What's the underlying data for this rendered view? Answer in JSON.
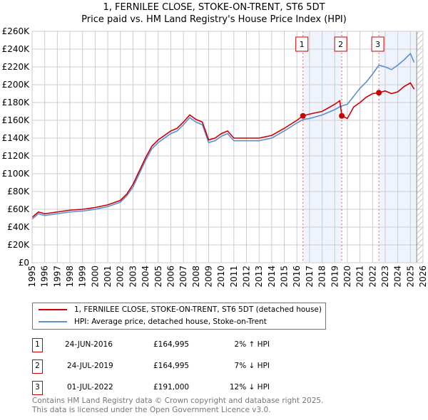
{
  "title": "1, FERNILEE CLOSE, STOKE-ON-TRENT, ST6 5DT",
  "subtitle": "Price paid vs. HM Land Registry's House Price Index (HPI)",
  "colors": {
    "property": "#cc0000",
    "hpi": "#5b8fd4",
    "shade": "#eef3fc"
  },
  "chart_data": {
    "type": "line",
    "xlim": [
      1995,
      2026
    ],
    "ylim": [
      0,
      260000
    ],
    "yticks": [
      0,
      20000,
      40000,
      60000,
      80000,
      100000,
      120000,
      140000,
      160000,
      180000,
      200000,
      220000,
      240000,
      260000
    ],
    "ytick_labels": [
      "£0",
      "£20K",
      "£40K",
      "£60K",
      "£80K",
      "£100K",
      "£120K",
      "£140K",
      "£160K",
      "£180K",
      "£200K",
      "£220K",
      "£240K",
      "£260K"
    ],
    "xticks": [
      "1995",
      "1996",
      "1997",
      "1998",
      "1999",
      "2000",
      "2001",
      "2002",
      "2003",
      "2004",
      "2005",
      "2006",
      "2007",
      "2008",
      "2009",
      "2010",
      "2011",
      "2012",
      "2013",
      "2014",
      "2015",
      "2016",
      "2017",
      "2018",
      "2019",
      "2020",
      "2021",
      "2022",
      "2023",
      "2024",
      "2025",
      "2026"
    ],
    "grid": true,
    "legend_placement": "below",
    "forecast_start": 2025.5,
    "series": [
      {
        "name": "1, FERNILEE CLOSE, STOKE-ON-TRENT, ST6 5DT (detached house)",
        "color": "#cc0000",
        "x": [
          1995,
          1995.5,
          1996,
          1997,
          1998,
          1999,
          2000,
          2001,
          2002,
          2002.5,
          2003,
          2003.5,
          2004,
          2004.5,
          2005,
          2006,
          2006.5,
          2007,
          2007.5,
          2008,
          2008.5,
          2009,
          2009.5,
          2010,
          2010.5,
          2011,
          2012,
          2013,
          2014,
          2015,
          2016,
          2016.48,
          2017,
          2018,
          2019,
          2019.4,
          2019.56,
          2020,
          2020.5,
          2021,
          2021.5,
          2022,
          2022.5,
          2023,
          2023.5,
          2024,
          2024.5,
          2025,
          2025.3
        ],
        "y": [
          51000,
          57000,
          55000,
          57000,
          59000,
          60000,
          62000,
          65000,
          70000,
          77000,
          88000,
          103000,
          118000,
          131000,
          138000,
          148000,
          151000,
          158000,
          166000,
          161000,
          158000,
          138000,
          140000,
          145000,
          148000,
          140000,
          140000,
          140000,
          143000,
          151000,
          160000,
          164995,
          167000,
          170000,
          178000,
          182000,
          164995,
          162000,
          175000,
          180000,
          186000,
          190000,
          191000,
          193000,
          190000,
          192000,
          198000,
          202000,
          195000
        ]
      },
      {
        "name": "HPI: Average price, detached house, Stoke-on-Trent",
        "color": "#5b8fd4",
        "x": [
          1995,
          1995.5,
          1996,
          1997,
          1998,
          1999,
          2000,
          2001,
          2002,
          2002.5,
          2003,
          2003.5,
          2004,
          2004.5,
          2005,
          2006,
          2006.5,
          2007,
          2007.5,
          2008,
          2008.5,
          2009,
          2009.5,
          2010,
          2010.5,
          2011,
          2012,
          2013,
          2014,
          2015,
          2016,
          2016.5,
          2017,
          2018,
          2019,
          2019.5,
          2020,
          2020.5,
          2021,
          2021.5,
          2022,
          2022.5,
          2023,
          2023.5,
          2024,
          2024.5,
          2025,
          2025.3
        ],
        "y": [
          49000,
          55000,
          53000,
          55000,
          57000,
          58000,
          60000,
          63000,
          68000,
          75000,
          85000,
          100000,
          115000,
          128000,
          135000,
          145000,
          148000,
          155000,
          163000,
          158000,
          155000,
          135000,
          137000,
          142000,
          145000,
          137000,
          137000,
          137000,
          140000,
          148000,
          157000,
          161000,
          162000,
          166000,
          172000,
          176000,
          178000,
          187000,
          196000,
          203000,
          212000,
          222000,
          220000,
          217000,
          222000,
          228000,
          235000,
          225000
        ]
      }
    ],
    "sales": [
      {
        "label": "1",
        "x": 2016.48,
        "y": 164995
      },
      {
        "label": "2",
        "x": 2019.56,
        "y": 164995
      },
      {
        "label": "3",
        "x": 2022.5,
        "y": 191000
      }
    ]
  },
  "legend": {
    "property": "1, FERNILEE CLOSE, STOKE-ON-TRENT, ST6 5DT (detached house)",
    "hpi": "HPI: Average price, detached house, Stoke-on-Trent"
  },
  "sales_table": [
    {
      "n": "1",
      "date": "24-JUN-2016",
      "price": "£164,995",
      "hpi": "2% ↑ HPI"
    },
    {
      "n": "2",
      "date": "24-JUL-2019",
      "price": "£164,995",
      "hpi": "7% ↓ HPI"
    },
    {
      "n": "3",
      "date": "01-JUL-2022",
      "price": "£191,000",
      "hpi": "12% ↓ HPI"
    }
  ],
  "footer": {
    "line1": "Contains HM Land Registry data © Crown copyright and database right 2025.",
    "line2": "This data is licensed under the Open Government Licence v3.0."
  }
}
